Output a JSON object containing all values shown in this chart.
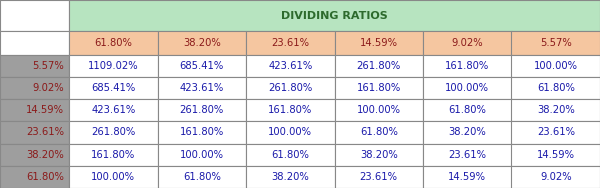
{
  "title": "DIVIDING RATIOS",
  "title_bg": "#b7e4c0",
  "title_color": "#2d6a2d",
  "col_headers": [
    "61.80%",
    "38.20%",
    "23.61%",
    "14.59%",
    "9.02%",
    "5.57%"
  ],
  "col_header_bg": "#f5c6a0",
  "col_header_color": "#8B1A1A",
  "row_headers": [
    "5.57%",
    "9.02%",
    "14.59%",
    "23.61%",
    "38.20%",
    "61.80%"
  ],
  "row_header_bg": "#9E9E9E",
  "row_header_color": "#8B1A1A",
  "cell_data": [
    [
      "1109.02%",
      "685.41%",
      "423.61%",
      "261.80%",
      "161.80%",
      "100.00%"
    ],
    [
      "685.41%",
      "423.61%",
      "261.80%",
      "161.80%",
      "100.00%",
      "61.80%"
    ],
    [
      "423.61%",
      "261.80%",
      "161.80%",
      "100.00%",
      "61.80%",
      "38.20%"
    ],
    [
      "261.80%",
      "161.80%",
      "100.00%",
      "61.80%",
      "38.20%",
      "23.61%"
    ],
    [
      "161.80%",
      "100.00%",
      "61.80%",
      "38.20%",
      "23.61%",
      "14.59%"
    ],
    [
      "100.00%",
      "61.80%",
      "38.20%",
      "23.61%",
      "14.59%",
      "9.02%"
    ]
  ],
  "cell_bg": "#FFFFFF",
  "cell_color": "#1a1aaa",
  "grid_color": "#888888",
  "top_left_bg": "#FFFFFF",
  "figsize": [
    6.0,
    1.88
  ],
  "dpi": 100
}
